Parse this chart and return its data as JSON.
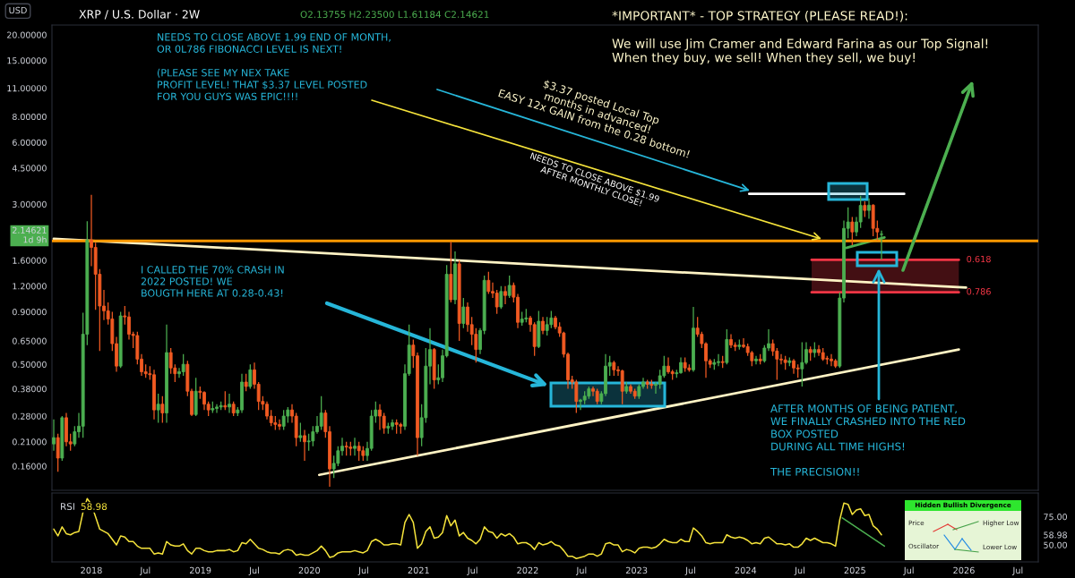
{
  "chart_data": [
    {
      "type": "candlestick",
      "title": "XRP / U.S. Dollar · 2W",
      "subtitle": "O2.13755 H2.23500 L1.61184 C2.14621",
      "ylabel": "USD",
      "x": [
        "2017-08-28",
        "2017-09-11",
        "2017-09-25",
        "2017-10-09",
        "2017-10-23",
        "2017-11-06",
        "2017-11-20",
        "2017-12-04",
        "2017-12-18",
        "2018-01-01",
        "2018-01-15",
        "2018-01-29",
        "2018-02-12",
        "2018-02-26",
        "2018-03-12",
        "2018-03-26",
        "2018-04-09",
        "2018-04-23",
        "2018-05-07",
        "2018-05-21",
        "2018-06-04",
        "2018-06-18",
        "2018-07-02",
        "2018-07-16",
        "2018-07-30",
        "2018-08-13",
        "2018-08-27",
        "2018-09-10",
        "2018-09-24",
        "2018-10-08",
        "2018-10-22",
        "2018-11-05",
        "2018-11-19",
        "2018-12-03",
        "2018-12-17",
        "2018-12-31",
        "2019-01-14",
        "2019-01-28",
        "2019-02-11",
        "2019-02-25",
        "2019-03-11",
        "2019-03-25",
        "2019-04-08",
        "2019-04-22",
        "2019-05-06",
        "2019-05-20",
        "2019-06-03",
        "2019-06-17",
        "2019-07-01",
        "2019-07-15",
        "2019-07-29",
        "2019-08-12",
        "2019-08-26",
        "2019-09-09",
        "2019-09-23",
        "2019-10-07",
        "2019-10-21",
        "2019-11-04",
        "2019-11-18",
        "2019-12-02",
        "2019-12-16",
        "2019-12-30",
        "2020-01-13",
        "2020-01-27",
        "2020-02-10",
        "2020-02-24",
        "2020-03-09",
        "2020-03-23",
        "2020-04-06",
        "2020-04-20",
        "2020-05-04",
        "2020-05-18",
        "2020-06-01",
        "2020-06-15",
        "2020-06-29",
        "2020-07-13",
        "2020-07-27",
        "2020-08-10",
        "2020-08-24",
        "2020-09-07",
        "2020-09-21",
        "2020-10-05",
        "2020-10-19",
        "2020-11-02",
        "2020-11-16",
        "2020-11-30",
        "2020-12-14",
        "2020-12-28",
        "2021-01-11",
        "2021-01-25",
        "2021-02-08",
        "2021-02-22",
        "2021-03-08",
        "2021-03-22",
        "2021-04-05",
        "2021-04-19",
        "2021-05-03",
        "2021-05-17",
        "2021-05-31",
        "2021-06-14",
        "2021-06-28",
        "2021-07-12",
        "2021-07-26",
        "2021-08-09",
        "2021-08-23",
        "2021-09-06",
        "2021-09-20",
        "2021-10-04",
        "2021-10-18",
        "2021-11-01",
        "2021-11-15",
        "2021-11-29",
        "2021-12-13",
        "2021-12-27",
        "2022-01-10",
        "2022-01-24",
        "2022-02-07",
        "2022-02-21",
        "2022-03-07",
        "2022-03-21",
        "2022-04-04",
        "2022-04-18",
        "2022-05-02",
        "2022-05-16",
        "2022-05-30",
        "2022-06-13",
        "2022-06-27",
        "2022-07-11",
        "2022-07-25",
        "2022-08-08",
        "2022-08-22",
        "2022-09-05",
        "2022-09-19",
        "2022-10-03",
        "2022-10-17",
        "2022-10-31",
        "2022-11-14",
        "2022-11-28",
        "2022-12-12",
        "2022-12-26",
        "2023-01-09",
        "2023-01-23",
        "2023-02-06",
        "2023-02-20",
        "2023-03-06",
        "2023-03-20",
        "2023-04-03",
        "2023-04-17",
        "2023-05-01",
        "2023-05-15",
        "2023-05-29",
        "2023-06-12",
        "2023-06-26",
        "2023-07-10",
        "2023-07-24",
        "2023-08-07",
        "2023-08-21",
        "2023-09-04",
        "2023-09-18",
        "2023-10-02",
        "2023-10-16",
        "2023-10-30",
        "2023-11-13",
        "2023-11-27",
        "2023-12-11",
        "2023-12-25",
        "2024-01-08",
        "2024-01-22",
        "2024-02-05",
        "2024-02-19",
        "2024-03-04",
        "2024-03-18",
        "2024-04-01",
        "2024-04-15",
        "2024-04-29",
        "2024-05-13",
        "2024-05-27",
        "2024-06-10",
        "2024-06-24",
        "2024-07-08",
        "2024-07-22",
        "2024-08-05",
        "2024-08-19",
        "2024-09-02",
        "2024-09-16",
        "2024-09-30",
        "2024-10-14",
        "2024-10-28",
        "2024-11-11",
        "2024-11-25",
        "2024-12-09",
        "2024-12-23",
        "2025-01-06",
        "2025-01-20",
        "2025-02-03",
        "2025-02-17",
        "2025-03-03",
        "2025-03-17",
        "2025-03-31"
      ],
      "ohlc": [
        [
          0.205,
          0.27,
          0.19,
          0.22
        ],
        [
          0.22,
          0.23,
          0.15,
          0.175
        ],
        [
          0.175,
          0.28,
          0.17,
          0.275
        ],
        [
          0.275,
          0.29,
          0.2,
          0.21
        ],
        [
          0.21,
          0.23,
          0.19,
          0.205
        ],
        [
          0.205,
          0.25,
          0.2,
          0.235
        ],
        [
          0.235,
          0.29,
          0.22,
          0.25
        ],
        [
          0.25,
          0.89,
          0.22,
          0.7
        ],
        [
          0.7,
          2.48,
          0.62,
          2.01
        ],
        [
          2.01,
          3.33,
          1.5,
          1.85
        ],
        [
          1.85,
          1.95,
          0.92,
          1.37
        ],
        [
          1.37,
          1.45,
          0.58,
          0.96
        ],
        [
          0.96,
          1.15,
          0.82,
          0.91
        ],
        [
          0.91,
          1.0,
          0.78,
          0.83
        ],
        [
          0.83,
          0.9,
          0.58,
          0.63
        ],
        [
          0.63,
          0.68,
          0.46,
          0.49
        ],
        [
          0.49,
          0.9,
          0.48,
          0.86
        ],
        [
          0.86,
          0.96,
          0.78,
          0.85
        ],
        [
          0.85,
          0.9,
          0.66,
          0.7
        ],
        [
          0.7,
          0.72,
          0.6,
          0.69
        ],
        [
          0.69,
          0.72,
          0.5,
          0.53
        ],
        [
          0.53,
          0.56,
          0.44,
          0.46
        ],
        [
          0.46,
          0.5,
          0.43,
          0.45
        ],
        [
          0.45,
          0.49,
          0.42,
          0.445
        ],
        [
          0.445,
          0.47,
          0.27,
          0.3
        ],
        [
          0.3,
          0.36,
          0.26,
          0.32
        ],
        [
          0.32,
          0.35,
          0.26,
          0.29
        ],
        [
          0.29,
          0.78,
          0.26,
          0.57
        ],
        [
          0.57,
          0.6,
          0.45,
          0.48
        ],
        [
          0.48,
          0.5,
          0.41,
          0.45
        ],
        [
          0.45,
          0.48,
          0.43,
          0.46
        ],
        [
          0.46,
          0.56,
          0.44,
          0.5
        ],
        [
          0.5,
          0.52,
          0.35,
          0.37
        ],
        [
          0.37,
          0.38,
          0.28,
          0.285
        ],
        [
          0.285,
          0.43,
          0.28,
          0.37
        ],
        [
          0.37,
          0.39,
          0.34,
          0.365
        ],
        [
          0.365,
          0.37,
          0.3,
          0.32
        ],
        [
          0.32,
          0.33,
          0.28,
          0.3
        ],
        [
          0.3,
          0.33,
          0.29,
          0.305
        ],
        [
          0.305,
          0.32,
          0.29,
          0.31
        ],
        [
          0.31,
          0.33,
          0.3,
          0.315
        ],
        [
          0.315,
          0.37,
          0.3,
          0.31
        ],
        [
          0.31,
          0.36,
          0.29,
          0.32
        ],
        [
          0.32,
          0.33,
          0.28,
          0.29
        ],
        [
          0.29,
          0.31,
          0.28,
          0.3
        ],
        [
          0.3,
          0.45,
          0.29,
          0.41
        ],
        [
          0.41,
          0.45,
          0.37,
          0.39
        ],
        [
          0.39,
          0.5,
          0.38,
          0.47
        ],
        [
          0.47,
          0.51,
          0.38,
          0.4
        ],
        [
          0.4,
          0.41,
          0.3,
          0.33
        ],
        [
          0.33,
          0.35,
          0.3,
          0.32
        ],
        [
          0.32,
          0.33,
          0.27,
          0.28
        ],
        [
          0.28,
          0.3,
          0.25,
          0.26
        ],
        [
          0.26,
          0.28,
          0.24,
          0.255
        ],
        [
          0.255,
          0.27,
          0.24,
          0.25
        ],
        [
          0.25,
          0.3,
          0.24,
          0.28
        ],
        [
          0.28,
          0.31,
          0.26,
          0.3
        ],
        [
          0.3,
          0.32,
          0.26,
          0.28
        ],
        [
          0.28,
          0.29,
          0.2,
          0.22
        ],
        [
          0.22,
          0.26,
          0.21,
          0.225
        ],
        [
          0.225,
          0.24,
          0.17,
          0.21
        ],
        [
          0.21,
          0.23,
          0.19,
          0.212
        ],
        [
          0.212,
          0.25,
          0.2,
          0.235
        ],
        [
          0.235,
          0.28,
          0.23,
          0.25
        ],
        [
          0.25,
          0.35,
          0.24,
          0.29
        ],
        [
          0.29,
          0.3,
          0.22,
          0.235
        ],
        [
          0.235,
          0.25,
          0.127,
          0.155
        ],
        [
          0.155,
          0.18,
          0.14,
          0.165
        ],
        [
          0.165,
          0.2,
          0.16,
          0.19
        ],
        [
          0.19,
          0.22,
          0.18,
          0.2
        ],
        [
          0.2,
          0.21,
          0.18,
          0.198
        ],
        [
          0.198,
          0.21,
          0.18,
          0.195
        ],
        [
          0.195,
          0.22,
          0.18,
          0.2
        ],
        [
          0.2,
          0.21,
          0.17,
          0.19
        ],
        [
          0.19,
          0.2,
          0.17,
          0.18
        ],
        [
          0.18,
          0.21,
          0.17,
          0.195
        ],
        [
          0.195,
          0.3,
          0.19,
          0.28
        ],
        [
          0.28,
          0.33,
          0.26,
          0.3
        ],
        [
          0.3,
          0.32,
          0.24,
          0.28
        ],
        [
          0.28,
          0.29,
          0.23,
          0.245
        ],
        [
          0.245,
          0.26,
          0.23,
          0.25
        ],
        [
          0.25,
          0.27,
          0.24,
          0.26
        ],
        [
          0.26,
          0.27,
          0.23,
          0.255
        ],
        [
          0.255,
          0.26,
          0.23,
          0.25
        ],
        [
          0.25,
          0.5,
          0.24,
          0.45
        ],
        [
          0.45,
          0.78,
          0.44,
          0.62
        ],
        [
          0.62,
          0.66,
          0.48,
          0.55
        ],
        [
          0.55,
          0.57,
          0.18,
          0.22
        ],
        [
          0.22,
          0.32,
          0.2,
          0.275
        ],
        [
          0.275,
          0.6,
          0.26,
          0.49
        ],
        [
          0.49,
          0.75,
          0.4,
          0.59
        ],
        [
          0.59,
          0.6,
          0.38,
          0.42
        ],
        [
          0.42,
          0.5,
          0.4,
          0.43
        ],
        [
          0.43,
          0.59,
          0.41,
          0.55
        ],
        [
          0.55,
          1.52,
          0.54,
          1.37
        ],
        [
          1.37,
          1.97,
          1.0,
          1.03
        ],
        [
          1.03,
          1.77,
          0.98,
          1.54
        ],
        [
          1.54,
          1.6,
          0.65,
          0.79
        ],
        [
          0.79,
          1.05,
          0.75,
          0.95
        ],
        [
          0.95,
          1.0,
          0.72,
          0.78
        ],
        [
          0.78,
          0.85,
          0.62,
          0.7
        ],
        [
          0.7,
          0.75,
          0.51,
          0.59
        ],
        [
          0.59,
          0.75,
          0.56,
          0.73
        ],
        [
          0.73,
          1.35,
          0.7,
          1.28
        ],
        [
          1.28,
          1.41,
          1.1,
          1.13
        ],
        [
          1.13,
          1.25,
          1.05,
          1.11
        ],
        [
          1.11,
          1.15,
          0.88,
          0.95
        ],
        [
          0.95,
          1.2,
          0.93,
          1.13
        ],
        [
          1.13,
          1.2,
          0.98,
          1.08
        ],
        [
          1.08,
          1.35,
          1.05,
          1.21
        ],
        [
          1.21,
          1.25,
          1.0,
          1.06
        ],
        [
          1.06,
          1.1,
          0.75,
          0.8
        ],
        [
          0.8,
          0.9,
          0.77,
          0.83
        ],
        [
          0.83,
          0.93,
          0.8,
          0.84
        ],
        [
          0.84,
          0.86,
          0.72,
          0.78
        ],
        [
          0.78,
          0.8,
          0.55,
          0.61
        ],
        [
          0.61,
          0.91,
          0.6,
          0.81
        ],
        [
          0.81,
          0.85,
          0.7,
          0.73
        ],
        [
          0.73,
          0.85,
          0.69,
          0.78
        ],
        [
          0.78,
          0.91,
          0.75,
          0.84
        ],
        [
          0.84,
          0.86,
          0.74,
          0.76
        ],
        [
          0.76,
          0.8,
          0.68,
          0.71
        ],
        [
          0.71,
          0.72,
          0.54,
          0.56
        ],
        [
          0.56,
          0.57,
          0.38,
          0.42
        ],
        [
          0.42,
          0.44,
          0.38,
          0.41
        ],
        [
          0.41,
          0.42,
          0.29,
          0.33
        ],
        [
          0.33,
          0.34,
          0.3,
          0.335
        ],
        [
          0.335,
          0.37,
          0.32,
          0.35
        ],
        [
          0.35,
          0.39,
          0.34,
          0.38
        ],
        [
          0.38,
          0.39,
          0.35,
          0.37
        ],
        [
          0.37,
          0.38,
          0.32,
          0.33
        ],
        [
          0.33,
          0.37,
          0.32,
          0.36
        ],
        [
          0.36,
          0.56,
          0.35,
          0.49
        ],
        [
          0.49,
          0.55,
          0.44,
          0.51
        ],
        [
          0.51,
          0.52,
          0.44,
          0.47
        ],
        [
          0.47,
          0.49,
          0.44,
          0.465
        ],
        [
          0.465,
          0.47,
          0.32,
          0.37
        ],
        [
          0.37,
          0.41,
          0.36,
          0.39
        ],
        [
          0.39,
          0.4,
          0.36,
          0.37
        ],
        [
          0.37,
          0.38,
          0.34,
          0.35
        ],
        [
          0.35,
          0.4,
          0.34,
          0.39
        ],
        [
          0.39,
          0.43,
          0.38,
          0.41
        ],
        [
          0.41,
          0.42,
          0.38,
          0.4
        ],
        [
          0.4,
          0.42,
          0.38,
          0.395
        ],
        [
          0.395,
          0.41,
          0.36,
          0.4
        ],
        [
          0.4,
          0.47,
          0.38,
          0.44
        ],
        [
          0.44,
          0.55,
          0.43,
          0.49
        ],
        [
          0.49,
          0.54,
          0.45,
          0.46
        ],
        [
          0.46,
          0.47,
          0.42,
          0.45
        ],
        [
          0.45,
          0.47,
          0.43,
          0.455
        ],
        [
          0.455,
          0.54,
          0.45,
          0.51
        ],
        [
          0.51,
          0.54,
          0.46,
          0.48
        ],
        [
          0.48,
          0.5,
          0.46,
          0.47
        ],
        [
          0.47,
          0.95,
          0.46,
          0.75
        ],
        [
          0.75,
          0.85,
          0.68,
          0.7
        ],
        [
          0.7,
          0.72,
          0.6,
          0.63
        ],
        [
          0.63,
          0.64,
          0.43,
          0.52
        ],
        [
          0.52,
          0.53,
          0.48,
          0.5
        ],
        [
          0.5,
          0.53,
          0.47,
          0.51
        ],
        [
          0.51,
          0.56,
          0.49,
          0.515
        ],
        [
          0.515,
          0.55,
          0.48,
          0.51
        ],
        [
          0.51,
          0.74,
          0.5,
          0.66
        ],
        [
          0.66,
          0.7,
          0.6,
          0.62
        ],
        [
          0.62,
          0.64,
          0.58,
          0.61
        ],
        [
          0.61,
          0.66,
          0.59,
          0.62
        ],
        [
          0.62,
          0.67,
          0.6,
          0.61
        ],
        [
          0.61,
          0.63,
          0.55,
          0.57
        ],
        [
          0.57,
          0.58,
          0.49,
          0.52
        ],
        [
          0.52,
          0.55,
          0.5,
          0.53
        ],
        [
          0.53,
          0.56,
          0.5,
          0.52
        ],
        [
          0.52,
          0.62,
          0.51,
          0.6
        ],
        [
          0.6,
          0.74,
          0.58,
          0.63
        ],
        [
          0.63,
          0.66,
          0.55,
          0.58
        ],
        [
          0.58,
          0.6,
          0.42,
          0.53
        ],
        [
          0.53,
          0.56,
          0.5,
          0.525
        ],
        [
          0.525,
          0.55,
          0.47,
          0.51
        ],
        [
          0.51,
          0.54,
          0.49,
          0.52
        ],
        [
          0.52,
          0.53,
          0.45,
          0.48
        ],
        [
          0.48,
          0.5,
          0.43,
          0.475
        ],
        [
          0.475,
          0.64,
          0.39,
          0.51
        ],
        [
          0.51,
          0.64,
          0.5,
          0.59
        ],
        [
          0.59,
          0.61,
          0.52,
          0.57
        ],
        [
          0.57,
          0.64,
          0.54,
          0.59
        ],
        [
          0.59,
          0.62,
          0.55,
          0.57
        ],
        [
          0.57,
          0.6,
          0.52,
          0.53
        ],
        [
          0.535,
          0.55,
          0.5,
          0.53
        ],
        [
          0.53,
          0.56,
          0.49,
          0.52
        ],
        [
          0.52,
          0.53,
          0.48,
          0.49
        ],
        [
          0.49,
          1.12,
          0.48,
          1.05
        ],
        [
          1.05,
          2.5,
          1.0,
          2.29
        ],
        [
          2.29,
          2.9,
          2.05,
          2.46
        ],
        [
          2.46,
          2.6,
          1.9,
          2.2
        ],
        [
          2.2,
          2.6,
          2.1,
          2.46
        ],
        [
          2.46,
          3.3,
          2.3,
          2.96
        ],
        [
          2.96,
          3.1,
          2.6,
          2.8
        ],
        [
          2.8,
          3.2,
          2.55,
          2.97
        ],
        [
          2.97,
          3.0,
          2.1,
          2.29
        ],
        [
          2.29,
          2.5,
          2.0,
          2.2
        ],
        [
          2.13755,
          2.235,
          1.61184,
          2.14621
        ]
      ],
      "colors": [
        "#4caf50",
        "#f15a22",
        "#4caf50",
        "#f15a22",
        "#f15a22",
        "#4caf50",
        "#4caf50",
        "#4caf50",
        "#4caf50",
        "#f15a22",
        "#f15a22",
        "#f15a22",
        "#f15a22",
        "#f15a22",
        "#f15a22",
        "#f15a22",
        "#4caf50",
        "#f15a22",
        "#f15a22",
        "#f15a22",
        "#f15a22",
        "#f15a22",
        "#f15a22",
        "#f15a22",
        "#f15a22",
        "#4caf50",
        "#f15a22",
        "#4caf50",
        "#f15a22",
        "#f15a22",
        "#4caf50",
        "#4caf50",
        "#f15a22",
        "#f15a22",
        "#4caf50",
        "#f15a22",
        "#f15a22",
        "#f15a22",
        "#4caf50",
        "#4caf50",
        "#4caf50",
        "#f15a22",
        "#4caf50",
        "#f15a22",
        "#4caf50",
        "#4caf50",
        "#f15a22",
        "#4caf50",
        "#f15a22",
        "#f15a22",
        "#f15a22",
        "#f15a22",
        "#f15a22",
        "#f15a22",
        "#f15a22",
        "#4caf50",
        "#4caf50",
        "#f15a22",
        "#f15a22",
        "#4caf50",
        "#f15a22",
        "#4caf50",
        "#4caf50",
        "#4caf50",
        "#4caf50",
        "#f15a22",
        "#f15a22",
        "#4caf50",
        "#4caf50",
        "#4caf50",
        "#f15a22",
        "#f15a22",
        "#4caf50",
        "#f15a22",
        "#f15a22",
        "#4caf50",
        "#4caf50",
        "#4caf50",
        "#f15a22",
        "#f15a22",
        "#4caf50",
        "#4caf50",
        "#f15a22",
        "#f15a22",
        "#4caf50",
        "#4caf50",
        "#f15a22",
        "#f15a22",
        "#4caf50",
        "#4caf50",
        "#4caf50",
        "#f15a22",
        "#4caf50",
        "#4caf50",
        "#4caf50",
        "#f15a22",
        "#4caf50",
        "#f15a22",
        "#4caf50",
        "#f15a22",
        "#f15a22",
        "#f15a22",
        "#4caf50",
        "#4caf50",
        "#f15a22",
        "#f15a22",
        "#f15a22",
        "#4caf50",
        "#f15a22",
        "#4caf50",
        "#f15a22",
        "#f15a22",
        "#4caf50",
        "#4caf50",
        "#f15a22",
        "#f15a22",
        "#4caf50",
        "#f15a22",
        "#4caf50",
        "#4caf50",
        "#f15a22",
        "#f15a22",
        "#f15a22",
        "#f15a22",
        "#f15a22",
        "#f15a22",
        "#4caf50",
        "#4caf50",
        "#4caf50",
        "#f15a22",
        "#f15a22",
        "#4caf50",
        "#4caf50",
        "#4caf50",
        "#f15a22",
        "#f15a22",
        "#f15a22",
        "#4caf50",
        "#f15a22",
        "#f15a22",
        "#4caf50",
        "#4caf50",
        "#f15a22",
        "#f15a22",
        "#4caf50",
        "#4caf50",
        "#4caf50",
        "#f15a22",
        "#f15a22",
        "#4caf50",
        "#4caf50",
        "#f15a22",
        "#f15a22",
        "#4caf50",
        "#f15a22",
        "#f15a22",
        "#f15a22",
        "#f15a22",
        "#4caf50",
        "#4caf50",
        "#f15a22",
        "#4caf50",
        "#f15a22",
        "#f15a22",
        "#4caf50",
        "#f15a22",
        "#f15a22",
        "#f15a22",
        "#4caf50",
        "#f15a22",
        "#4caf50",
        "#4caf50",
        "#f15a22",
        "#f15a22",
        "#f15a22",
        "#f15a22",
        "#4caf50",
        "#f15a22",
        "#f15a22",
        "#4caf50",
        "#4caf50",
        "#f15a22",
        "#4caf50",
        "#f15a22",
        "#f15a22",
        "#f15a22",
        "#f15a22",
        "#f15a22",
        "#4caf50",
        "#4caf50",
        "#4caf50",
        "#f15a22",
        "#4caf50",
        "#4caf50",
        "#f15a22",
        "#4caf50",
        "#f15a22",
        "#f15a22",
        "#4caf50"
      ],
      "series": [
        {
          "type": "line",
          "color": "#fff3c4",
          "x": [
            "2017-08-28",
            "2026-01-08"
          ],
          "values": [
            2.04,
            1.18
          ]
        },
        {
          "type": "line",
          "color": "#fff3c4",
          "x": [
            "2020-02-03",
            "2025-12-15"
          ],
          "values": [
            0.145,
            0.59
          ]
        },
        {
          "type": "line",
          "color": "#ffffff",
          "x": [
            "2024-01-13",
            "2025-06-15"
          ],
          "values": [
            3.37,
            3.37
          ]
        },
        {
          "type": "line",
          "color": "#4caf50",
          "x": [
            "2024-12-02",
            "2025-04-10"
          ],
          "values": [
            1.84,
            2.07
          ]
        },
        {
          "type": "line",
          "color": "#f23645",
          "x": [
            "2024-08-09",
            "2025-12-15"
          ],
          "values": [
            1.61,
            1.61
          ],
          "lower": [
            1.12,
            1.12
          ],
          "upper": [
            1.61,
            1.61
          ]
        },
        {
          "type": "line",
          "color": "#f23645",
          "x": [
            "2024-08-09",
            "2025-12-15"
          ],
          "values": [
            1.12,
            1.12
          ]
        }
      ],
      "ref_lines": [
        {
          "axis": "y",
          "value": 1.99,
          "color": "#ff9800"
        }
      ],
      "annotations": [
        "NEEDS TO CLOSE ABOVE 1.99 END OF MONTH,\nOR 0L786 FIBONACCI LEVEL IS NEXT!\n\n(PLEASE SEE MY NEX TAKE\nPROFIT LEVEL! THAT $3.37 LEVEL POSTED\nFOR YOU GUYS WAS EPIC!!!!",
        "$3.37 posted Local Top\nmonths in advanced!\nEASY 12x GAIN from the 0.28 bottom!",
        "NEEDS TO CLOSE ABOVE $1.99\nAFTER MONTHLY CLOSE!",
        "I CALLED THE 70% CRASH IN\n2022 POSTED! WE\nBOUGTH HERE AT 0.28-0.43!",
        "AFTER MONTHS OF BEING PATIENT,\nWE FINALLY CRASHED INTO THE RED\nBOX POSTED\nDURING ALL TIME HIGHS!\n\nTHE PRECISION!!",
        "*IMPORTANT* - TOP STRATEGY (PLEASE READ!):\n\nWe will use Jim Cramer and Edward Farina as our Top Signal!\nWhen they buy, we sell! When they sell, we buy!",
        {
          "text": "0.618",
          "x": "2025-12-15",
          "y": 1.61
        },
        {
          "text": "0.786",
          "x": "2025-12-15",
          "y": 1.12
        }
      ],
      "log": true,
      "xlim": [
        "2017-08-22",
        "2026-09-07"
      ],
      "ylim": [
        0.122,
        22.3
      ],
      "yticks": [
        {
          "value": 20,
          "label": "20.00000"
        },
        {
          "value": 15,
          "label": "15.00000"
        },
        {
          "value": 11,
          "label": "11.00000"
        },
        {
          "value": 8,
          "label": "8.00000"
        },
        {
          "value": 6,
          "label": "6.00000"
        },
        {
          "value": 4.5,
          "label": "4.50000"
        },
        {
          "value": 3,
          "label": "3.00000"
        },
        {
          "value": 2.14621,
          "label": "2.14621\n1d 9h"
        },
        {
          "value": 1.6,
          "label": "1.60000"
        },
        {
          "value": 1.2,
          "label": "1.20000"
        },
        {
          "value": 0.9,
          "label": "0.90000"
        },
        {
          "value": 0.65,
          "label": "0.65000"
        },
        {
          "value": 0.5,
          "label": "0.50000"
        },
        {
          "value": 0.38,
          "label": "0.38000"
        },
        {
          "value": 0.28,
          "label": "0.28000"
        },
        {
          "value": 0.21,
          "label": "0.21000"
        },
        {
          "value": 0.16,
          "label": "0.16000"
        }
      ],
      "tick_labels": "y"
    },
    {
      "type": "line",
      "subtitle": "58.98",
      "x": [
        "2017-08-28",
        "2017-09-11",
        "2017-09-25",
        "2017-10-09",
        "2017-10-23",
        "2017-11-06",
        "2017-11-20",
        "2017-12-04",
        "2017-12-18",
        "2018-01-01",
        "2018-01-15",
        "2018-01-29",
        "2018-02-12",
        "2018-02-26",
        "2018-03-12",
        "2018-03-26",
        "2018-04-09",
        "2018-04-23",
        "2018-05-07",
        "2018-05-21",
        "2018-06-04",
        "2018-06-18",
        "2018-07-02",
        "2018-07-16",
        "2018-07-30",
        "2018-08-13",
        "2018-08-27",
        "2018-09-10",
        "2018-09-24",
        "2018-10-08",
        "2018-10-22",
        "2018-11-05",
        "2018-11-19",
        "2018-12-03",
        "2018-12-17",
        "2018-12-31",
        "2019-01-14",
        "2019-01-28",
        "2019-02-11",
        "2019-02-25",
        "2019-03-11",
        "2019-03-25",
        "2019-04-08",
        "2019-04-22",
        "2019-05-06",
        "2019-05-20",
        "2019-06-03",
        "2019-06-17",
        "2019-07-01",
        "2019-07-15",
        "2019-07-29",
        "2019-08-12",
        "2019-08-26",
        "2019-09-09",
        "2019-09-23",
        "2019-10-07",
        "2019-10-21",
        "2019-11-04",
        "2019-11-18",
        "2019-12-02",
        "2019-12-16",
        "2019-12-30",
        "2020-01-13",
        "2020-01-27",
        "2020-02-10",
        "2020-02-24",
        "2020-03-09",
        "2020-03-23",
        "2020-04-06",
        "2020-04-20",
        "2020-05-04",
        "2020-05-18",
        "2020-06-01",
        "2020-06-15",
        "2020-06-29",
        "2020-07-13",
        "2020-07-27",
        "2020-08-10",
        "2020-08-24",
        "2020-09-07",
        "2020-09-21",
        "2020-10-05",
        "2020-10-19",
        "2020-11-02",
        "2020-11-16",
        "2020-11-30",
        "2020-12-14",
        "2020-12-28",
        "2021-01-11",
        "2021-01-25",
        "2021-02-08",
        "2021-02-22",
        "2021-03-08",
        "2021-03-22",
        "2021-04-05",
        "2021-04-19",
        "2021-05-03",
        "2021-05-17",
        "2021-05-31",
        "2021-06-14",
        "2021-06-28",
        "2021-07-12",
        "2021-07-26",
        "2021-08-09",
        "2021-08-23",
        "2021-09-06",
        "2021-09-20",
        "2021-10-04",
        "2021-10-18",
        "2021-11-01",
        "2021-11-15",
        "2021-11-29",
        "2021-12-13",
        "2021-12-27",
        "2022-01-10",
        "2022-01-24",
        "2022-02-07",
        "2022-02-21",
        "2022-03-07",
        "2022-03-21",
        "2022-04-04",
        "2022-04-18",
        "2022-05-02",
        "2022-05-16",
        "2022-05-30",
        "2022-06-13",
        "2022-06-27",
        "2022-07-11",
        "2022-07-25",
        "2022-08-08",
        "2022-08-22",
        "2022-09-05",
        "2022-09-19",
        "2022-10-03",
        "2022-10-17",
        "2022-10-31",
        "2022-11-14",
        "2022-11-28",
        "2022-12-12",
        "2022-12-26",
        "2023-01-09",
        "2023-01-23",
        "2023-02-06",
        "2023-02-20",
        "2023-03-06",
        "2023-03-20",
        "2023-04-03",
        "2023-04-17",
        "2023-05-01",
        "2023-05-15",
        "2023-05-29",
        "2023-06-12",
        "2023-06-26",
        "2023-07-10",
        "2023-07-24",
        "2023-08-07",
        "2023-08-21",
        "2023-09-04",
        "2023-09-18",
        "2023-10-02",
        "2023-10-16",
        "2023-10-30",
        "2023-11-13",
        "2023-11-27",
        "2023-12-11",
        "2023-12-25",
        "2024-01-08",
        "2024-01-22",
        "2024-02-05",
        "2024-02-19",
        "2024-03-04",
        "2024-03-18",
        "2024-04-01",
        "2024-04-15",
        "2024-04-29",
        "2024-05-13",
        "2024-05-27",
        "2024-06-10",
        "2024-06-24",
        "2024-07-08",
        "2024-07-22",
        "2024-08-05",
        "2024-08-19",
        "2024-09-02",
        "2024-09-16",
        "2024-09-30",
        "2024-10-14",
        "2024-10-28",
        "2024-11-11",
        "2024-11-25",
        "2024-12-09",
        "2024-12-23",
        "2025-01-06",
        "2025-01-20",
        "2025-02-03",
        "2025-02-17",
        "2025-03-03",
        "2025-03-17",
        "2025-03-31"
      ],
      "series": [
        {
          "name": "RSI",
          "color": "#f5e33b",
          "values": [
            64,
            58,
            66,
            60,
            59,
            61,
            62,
            79,
            91,
            86,
            75,
            64,
            62,
            60,
            55,
            50,
            58,
            57,
            53,
            53,
            49,
            47,
            47,
            47,
            42,
            43,
            42,
            53,
            50,
            49,
            49,
            51,
            45,
            42,
            47,
            47,
            45,
            44,
            44,
            45,
            45,
            45,
            46,
            44,
            45,
            52,
            51,
            55,
            51,
            47,
            46,
            44,
            43,
            43,
            42,
            45,
            46,
            45,
            41,
            42,
            41,
            41,
            43,
            45,
            49,
            45,
            39,
            40,
            43,
            44,
            44,
            44,
            45,
            44,
            43,
            45,
            53,
            55,
            53,
            50,
            50,
            51,
            51,
            50,
            70,
            77,
            70,
            47,
            51,
            62,
            66,
            56,
            57,
            61,
            76,
            67,
            72,
            58,
            61,
            56,
            54,
            51,
            55,
            66,
            62,
            61,
            56,
            60,
            58,
            60,
            57,
            51,
            52,
            52,
            50,
            46,
            52,
            50,
            51,
            53,
            50,
            49,
            45,
            40,
            40,
            38,
            39,
            40,
            42,
            42,
            40,
            42,
            51,
            52,
            50,
            50,
            44,
            46,
            45,
            43,
            47,
            48,
            48,
            47,
            48,
            51,
            55,
            53,
            52,
            52,
            55,
            53,
            53,
            65,
            62,
            58,
            52,
            51,
            52,
            52,
            52,
            59,
            57,
            56,
            57,
            56,
            54,
            51,
            52,
            51,
            56,
            57,
            54,
            51,
            51,
            50,
            51,
            48,
            48,
            51,
            56,
            54,
            56,
            54,
            52,
            52,
            51,
            49,
            72,
            87,
            86,
            77,
            81,
            82,
            76,
            77,
            67,
            64,
            58.98
          ]
        },
        {
          "type": "line",
          "color": "#4caf50",
          "x": [
            "2024-11-20",
            "2025-04-10"
          ],
          "values": [
            74,
            49
          ]
        }
      ],
      "annotations": [
        "Hidden Bullish Divergence",
        "Price",
        "Higher Low",
        "Oscillator",
        "Lower Low"
      ],
      "xlim": [
        "2017-08-22",
        "2026-09-07"
      ],
      "ylim": [
        35,
        96
      ],
      "xticks": [
        {
          "value": "2018-01-01",
          "label": "2018"
        },
        {
          "value": "2018-07-01",
          "label": "Jul"
        },
        {
          "value": "2019-01-01",
          "label": "2019"
        },
        {
          "value": "2019-07-01",
          "label": "Jul"
        },
        {
          "value": "2020-01-01",
          "label": "2020"
        },
        {
          "value": "2020-07-01",
          "label": "Jul"
        },
        {
          "value": "2021-01-01",
          "label": "2021"
        },
        {
          "value": "2021-07-01",
          "label": "Jul"
        },
        {
          "value": "2022-01-01",
          "label": "2022"
        },
        {
          "value": "2022-07-01",
          "label": "Jul"
        },
        {
          "value": "2023-01-01",
          "label": "2023"
        },
        {
          "value": "2023-07-01",
          "label": "Jul"
        },
        {
          "value": "2024-01-01",
          "label": "2024"
        },
        {
          "value": "2024-07-01",
          "label": "Jul"
        },
        {
          "value": "2025-01-01",
          "label": "2025"
        },
        {
          "value": "2025-07-01",
          "label": "Jul"
        },
        {
          "value": "2026-01-01",
          "label": "2026"
        },
        {
          "value": "2026-07-01",
          "label": "Jul"
        }
      ],
      "yticks": [
        {
          "value": 75,
          "label": "75.00"
        },
        {
          "value": 58.98,
          "label": "58.98"
        },
        {
          "value": 50,
          "label": "50.00"
        }
      ]
    }
  ]
}
